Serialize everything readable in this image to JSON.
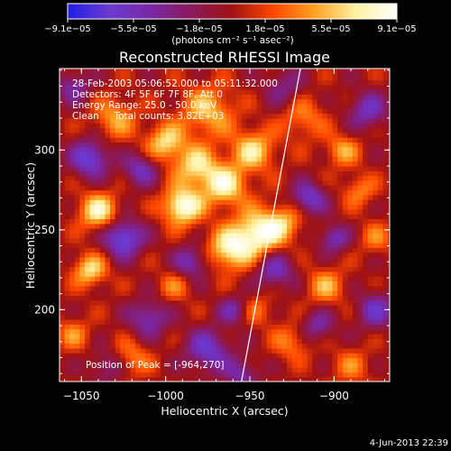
{
  "chart_data": {
    "type": "heatmap",
    "title": "Reconstructed RHESSI Image",
    "xlabel": "Heliocentric X (arcsec)",
    "ylabel": "Heliocentric Y (arcsec)",
    "xlim": [
      -1063,
      -867
    ],
    "ylim": [
      155,
      351
    ],
    "x_ticks": [
      -1050,
      -1000,
      -950,
      -900
    ],
    "y_ticks": [
      200,
      250,
      300
    ],
    "x_tick_labels": [
      "−1050",
      "−1000",
      "−950",
      "−900"
    ],
    "y_tick_labels": [
      "200",
      "250",
      "300"
    ],
    "colorbar": {
      "tick_labels": [
        "−9.1e−05",
        "−5.5e−05",
        "−1.8e−05",
        "1.8e−05",
        "5.5e−05",
        "9.1e−05"
      ],
      "range": [
        -9.1e-05,
        9.1e-05
      ],
      "units_label": "(photons cm⁻² s⁻¹ asec⁻²)",
      "colors": [
        "#1e1ee6",
        "#6a3ad0",
        "#7a28a8",
        "#8a1a5a",
        "#a01212",
        "#ff4800",
        "#ffa020",
        "#fff2a0",
        "#ffffff"
      ]
    },
    "annotations": [
      "28-Feb-2003 05:06:52.000 to 05:11:32.000",
      "Detectors: 4F 5F 6F 7F 8F, Att 0",
      "Energy Range: 25.0 - 50.0 keV",
      "Clean     Total counts: 3.82E+03"
    ],
    "peak_label": "Position of Peak = [-964,270]",
    "peak": [
      -964,
      270
    ],
    "limb_line": [
      [
        -955,
        155
      ],
      [
        -920,
        351
      ]
    ],
    "footer": "4-Jun-2013 22:39",
    "blobs": [
      {
        "x": -990,
        "y": 265,
        "v": 1.0,
        "s": 8
      },
      {
        "x": -982,
        "y": 290,
        "v": 0.7,
        "s": 9
      },
      {
        "x": -975,
        "y": 325,
        "v": 0.6,
        "s": 11
      },
      {
        "x": -1000,
        "y": 305,
        "v": 0.7,
        "s": 8
      },
      {
        "x": -965,
        "y": 278,
        "v": 0.8,
        "s": 9
      },
      {
        "x": -948,
        "y": 300,
        "v": 0.7,
        "s": 9
      },
      {
        "x": -945,
        "y": 248,
        "v": 0.9,
        "s": 10
      },
      {
        "x": -962,
        "y": 238,
        "v": 0.8,
        "s": 9
      },
      {
        "x": -930,
        "y": 255,
        "v": 0.5,
        "s": 8
      },
      {
        "x": -1040,
        "y": 262,
        "v": 0.8,
        "s": 8
      },
      {
        "x": -1045,
        "y": 225,
        "v": 0.7,
        "s": 7
      },
      {
        "x": -1030,
        "y": 320,
        "v": 0.5,
        "s": 9
      },
      {
        "x": -1055,
        "y": 185,
        "v": 0.4,
        "s": 7
      },
      {
        "x": -1020,
        "y": 170,
        "v": 0.4,
        "s": 8
      },
      {
        "x": -995,
        "y": 215,
        "v": 0.35,
        "s": 7
      },
      {
        "x": -918,
        "y": 320,
        "v": 0.4,
        "s": 9
      },
      {
        "x": -895,
        "y": 300,
        "v": 0.5,
        "s": 7
      },
      {
        "x": -885,
        "y": 275,
        "v": 0.4,
        "s": 7
      },
      {
        "x": -905,
        "y": 215,
        "v": 0.5,
        "s": 8
      },
      {
        "x": -875,
        "y": 245,
        "v": 0.35,
        "s": 7
      },
      {
        "x": -925,
        "y": 180,
        "v": 0.4,
        "s": 8
      },
      {
        "x": -890,
        "y": 165,
        "v": 0.35,
        "s": 8
      },
      {
        "x": -945,
        "y": 200,
        "v": 0.3,
        "s": 7
      },
      {
        "x": -1045,
        "y": 295,
        "v": -0.8,
        "s": 8
      },
      {
        "x": -1025,
        "y": 245,
        "v": -0.9,
        "s": 8
      },
      {
        "x": -1015,
        "y": 288,
        "v": -0.6,
        "s": 7
      },
      {
        "x": -1010,
        "y": 195,
        "v": -0.6,
        "s": 8
      },
      {
        "x": -1055,
        "y": 340,
        "v": -0.5,
        "s": 7
      },
      {
        "x": -975,
        "y": 175,
        "v": -0.7,
        "s": 9
      },
      {
        "x": -985,
        "y": 230,
        "v": -0.6,
        "s": 7
      },
      {
        "x": -960,
        "y": 200,
        "v": -0.5,
        "s": 6
      },
      {
        "x": -935,
        "y": 225,
        "v": -0.6,
        "s": 8
      },
      {
        "x": -915,
        "y": 270,
        "v": -0.7,
        "s": 7
      },
      {
        "x": -900,
        "y": 245,
        "v": -0.6,
        "s": 6
      },
      {
        "x": -880,
        "y": 325,
        "v": -0.6,
        "s": 8
      },
      {
        "x": -910,
        "y": 190,
        "v": -0.5,
        "s": 7
      },
      {
        "x": -875,
        "y": 200,
        "v": -0.6,
        "s": 8
      },
      {
        "x": -930,
        "y": 340,
        "v": -0.4,
        "s": 8
      },
      {
        "x": -955,
        "y": 160,
        "v": -0.5,
        "s": 7
      },
      {
        "x": -1035,
        "y": 165,
        "v": -0.4,
        "s": 7
      }
    ]
  }
}
